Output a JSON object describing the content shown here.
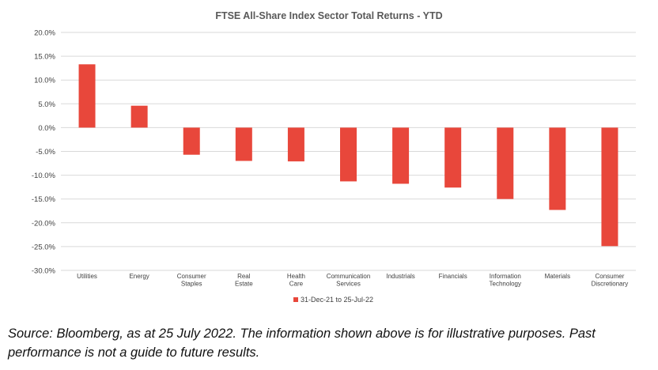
{
  "chart_data": {
    "type": "bar",
    "title": "FTSE All-Share Index Sector Total Returns - YTD",
    "categories": [
      [
        "Utilities"
      ],
      [
        "Energy"
      ],
      [
        "Consumer",
        "Staples"
      ],
      [
        "Real",
        "Estate"
      ],
      [
        "Health",
        "Care"
      ],
      [
        "Communication",
        "Services"
      ],
      [
        "Industrials"
      ],
      [
        "Financials"
      ],
      [
        "Information",
        "Technology"
      ],
      [
        "Materials"
      ],
      [
        "Consumer",
        "Discretionary"
      ]
    ],
    "series": [
      {
        "name": "31-Dec-21 to 25-Jul-22",
        "color": "#e8473b",
        "values": [
          13.3,
          4.6,
          -5.7,
          -7.0,
          -7.1,
          -11.3,
          -11.8,
          -12.6,
          -15.0,
          -17.3,
          -24.9
        ]
      }
    ],
    "ylim": [
      -30,
      20
    ],
    "yticks": [
      20,
      15,
      10,
      5,
      0,
      -5,
      -10,
      -15,
      -20,
      -25,
      -30
    ],
    "ytick_labels": [
      "20.0%",
      "15.0%",
      "10.0%",
      "5.0%",
      "0.0%",
      "-5.0%",
      "-10.0%",
      "-15.0%",
      "-20.0%",
      "-25.0%",
      "-30.0%"
    ],
    "grid": true,
    "legend_position": "bottom"
  },
  "source_note": "Source: Bloomberg, as at 25 July 2022. The information shown above is for illustrative purposes. Past performance is not a guide to future results."
}
